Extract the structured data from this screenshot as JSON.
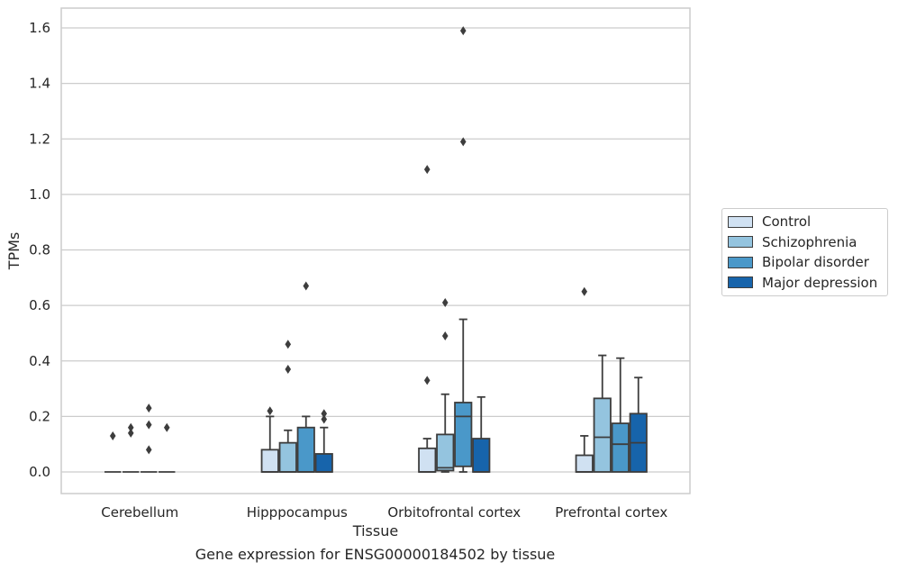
{
  "chart_data": {
    "type": "box",
    "title": "",
    "caption": "Gene expression for ENSG00000184502 by tissue",
    "xlabel": "Tissue",
    "ylabel": "TPMs",
    "ylim": [
      -0.08,
      1.67
    ],
    "yticks": [
      0.0,
      0.2,
      0.4,
      0.6,
      0.8,
      1.0,
      1.2,
      1.4,
      1.6
    ],
    "ytick_labels": [
      "0.0",
      "0.2",
      "0.4",
      "0.6",
      "0.8",
      "1.0",
      "1.2",
      "1.4",
      "1.6"
    ],
    "grid": "horizontal",
    "legend_position": "right",
    "categories": [
      "Cerebellum",
      "Hipppocampus",
      "Orbitofrontal cortex",
      "Prefrontal cortex"
    ],
    "series": [
      {
        "name": "Control",
        "color": "#d0e1f2",
        "boxes": [
          {
            "whisker_low": 0.0,
            "q1": 0.0,
            "median": 0.0,
            "q3": 0.0,
            "whisker_high": 0.0,
            "outliers": [
              0.13
            ]
          },
          {
            "whisker_low": 0.0,
            "q1": 0.0,
            "median": 0.0,
            "q3": 0.08,
            "whisker_high": 0.2,
            "outliers": [
              0.22
            ]
          },
          {
            "whisker_low": 0.0,
            "q1": 0.0,
            "median": 0.0,
            "q3": 0.085,
            "whisker_high": 0.12,
            "outliers": [
              0.33,
              1.09
            ]
          },
          {
            "whisker_low": 0.0,
            "q1": 0.0,
            "median": 0.0,
            "q3": 0.06,
            "whisker_high": 0.13,
            "outliers": [
              0.65
            ]
          }
        ]
      },
      {
        "name": "Schizophrenia",
        "color": "#94c4df",
        "boxes": [
          {
            "whisker_low": 0.0,
            "q1": 0.0,
            "median": 0.0,
            "q3": 0.0,
            "whisker_high": 0.0,
            "outliers": [
              0.14,
              0.16
            ]
          },
          {
            "whisker_low": 0.0,
            "q1": 0.0,
            "median": 0.0,
            "q3": 0.105,
            "whisker_high": 0.15,
            "outliers": [
              0.37,
              0.46
            ]
          },
          {
            "whisker_low": 0.0,
            "q1": 0.005,
            "median": 0.015,
            "q3": 0.135,
            "whisker_high": 0.28,
            "outliers": [
              0.49,
              0.61
            ]
          },
          {
            "whisker_low": 0.0,
            "q1": 0.0,
            "median": 0.125,
            "q3": 0.265,
            "whisker_high": 0.42,
            "outliers": []
          }
        ]
      },
      {
        "name": "Bipolar disorder",
        "color": "#4a98c9",
        "boxes": [
          {
            "whisker_low": 0.0,
            "q1": 0.0,
            "median": 0.0,
            "q3": 0.0,
            "whisker_high": 0.0,
            "outliers": [
              0.08,
              0.17,
              0.23
            ]
          },
          {
            "whisker_low": 0.0,
            "q1": 0.0,
            "median": 0.0,
            "q3": 0.16,
            "whisker_high": 0.2,
            "outliers": [
              0.67
            ]
          },
          {
            "whisker_low": 0.0,
            "q1": 0.02,
            "median": 0.2,
            "q3": 0.25,
            "whisker_high": 0.55,
            "outliers": [
              1.19,
              1.59
            ]
          },
          {
            "whisker_low": 0.0,
            "q1": 0.0,
            "median": 0.1,
            "q3": 0.175,
            "whisker_high": 0.41,
            "outliers": []
          }
        ]
      },
      {
        "name": "Major depression",
        "color": "#1764ab",
        "boxes": [
          {
            "whisker_low": 0.0,
            "q1": 0.0,
            "median": 0.0,
            "q3": 0.0,
            "whisker_high": 0.0,
            "outliers": [
              0.16
            ]
          },
          {
            "whisker_low": 0.0,
            "q1": 0.0,
            "median": 0.0,
            "q3": 0.065,
            "whisker_high": 0.16,
            "outliers": [
              0.19,
              0.21
            ]
          },
          {
            "whisker_low": 0.0,
            "q1": 0.0,
            "median": 0.0,
            "q3": 0.12,
            "whisker_high": 0.27,
            "outliers": []
          },
          {
            "whisker_low": 0.0,
            "q1": 0.0,
            "median": 0.105,
            "q3": 0.21,
            "whisker_high": 0.34,
            "outliers": []
          }
        ]
      }
    ]
  }
}
